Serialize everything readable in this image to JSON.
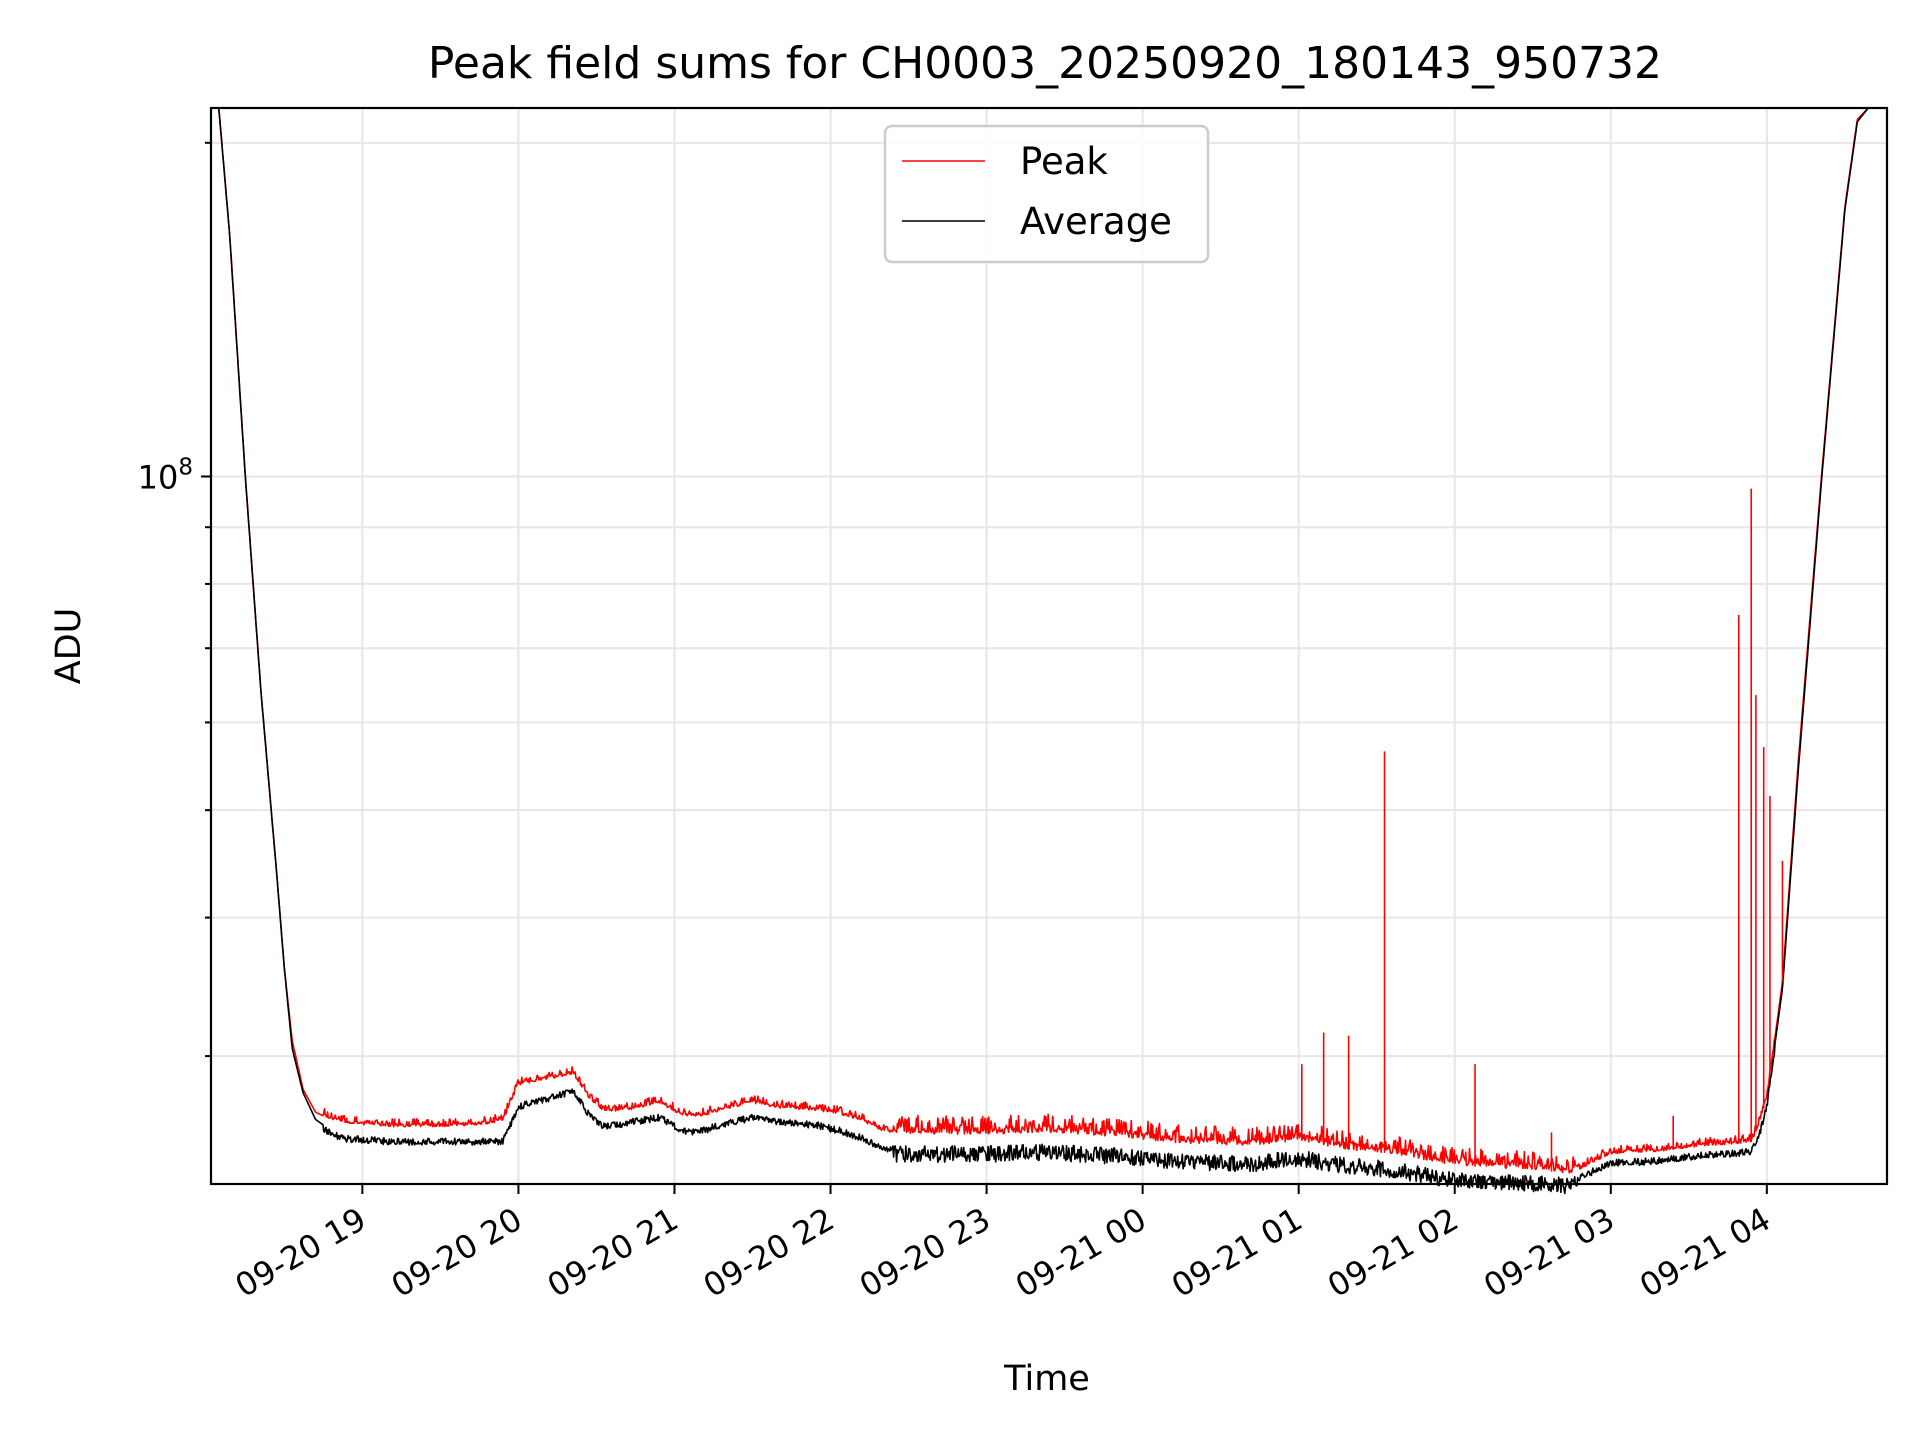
{
  "chart_data": {
    "type": "line",
    "title": "Peak field sums for CH0003_20250920_180143_950732",
    "xlabel": "Time",
    "ylabel": "ADU",
    "yscale": "log",
    "x_unit": "hours after 09-20 18:00",
    "xlim": [
      0.03,
      10.77
    ],
    "ylim": [
      23000000,
      215000000
    ],
    "x_ticks": [
      {
        "value": 1,
        "label": "09-20 19"
      },
      {
        "value": 2,
        "label": "09-20 20"
      },
      {
        "value": 3,
        "label": "09-20 21"
      },
      {
        "value": 4,
        "label": "09-20 22"
      },
      {
        "value": 5,
        "label": "09-20 23"
      },
      {
        "value": 6,
        "label": "09-21 00"
      },
      {
        "value": 7,
        "label": "09-21 01"
      },
      {
        "value": 8,
        "label": "09-21 02"
      },
      {
        "value": 9,
        "label": "09-21 03"
      },
      {
        "value": 10,
        "label": "09-21 04"
      }
    ],
    "y_ticks": [
      {
        "value": 100000000,
        "base": "10",
        "exp": "8"
      }
    ],
    "y_minor_ticks": [
      30000000,
      40000000,
      50000000,
      60000000,
      70000000,
      80000000,
      90000000,
      200000000
    ],
    "legend": {
      "position": "upper center",
      "entries": [
        "Peak",
        "Average"
      ]
    },
    "series": [
      {
        "name": "Peak",
        "color": "#ff0000",
        "x": [
          0.03,
          0.08,
          0.15,
          0.25,
          0.35,
          0.45,
          0.5,
          0.55,
          0.62,
          0.7,
          0.8,
          0.9,
          1.0,
          1.2,
          1.5,
          1.75,
          1.9,
          2.0,
          2.2,
          2.35,
          2.45,
          2.55,
          2.7,
          2.9,
          3.05,
          3.15,
          3.3,
          3.5,
          3.7,
          3.9,
          4.05,
          4.2,
          4.35,
          4.6,
          5.0,
          5.4,
          5.8,
          6.3,
          6.7,
          7.0,
          7.3,
          7.6,
          7.9,
          8.2,
          8.5,
          8.75,
          9.0,
          9.3,
          9.6,
          9.8,
          9.9,
          9.95,
          10.0,
          10.1,
          10.2,
          10.35,
          10.5,
          10.58,
          10.65,
          10.77
        ],
        "y": [
          215000000,
          215000000,
          165000000,
          100000000,
          64000000,
          44000000,
          36000000,
          31000000,
          28000000,
          26700000,
          26300000,
          26100000,
          26000000,
          25900000,
          25900000,
          26000000,
          26200000,
          28200000,
          28600000,
          28900000,
          27500000,
          26700000,
          26800000,
          27200000,
          26500000,
          26400000,
          26800000,
          27200000,
          26900000,
          26800000,
          26600000,
          26200000,
          25600000,
          25500000,
          25500000,
          25600000,
          25400000,
          25000000,
          24900000,
          25200000,
          24700000,
          24500000,
          24000000,
          23800000,
          23700000,
          23500000,
          24500000,
          24600000,
          24900000,
          25000000,
          25100000,
          26000000,
          27500000,
          35000000,
          55000000,
          100000000,
          175000000,
          210000000,
          215000000,
          215000000
        ]
      },
      {
        "name": "Average",
        "color": "#000000",
        "x": [
          0.03,
          0.08,
          0.15,
          0.25,
          0.35,
          0.45,
          0.5,
          0.55,
          0.62,
          0.7,
          0.8,
          0.9,
          1.0,
          1.2,
          1.5,
          1.75,
          1.9,
          2.0,
          2.2,
          2.35,
          2.45,
          2.55,
          2.7,
          2.9,
          3.05,
          3.15,
          3.3,
          3.5,
          3.7,
          3.9,
          4.05,
          4.2,
          4.35,
          4.6,
          5.0,
          5.4,
          5.8,
          6.3,
          6.7,
          7.0,
          7.3,
          7.6,
          7.9,
          8.2,
          8.5,
          8.75,
          9.0,
          9.3,
          9.6,
          9.8,
          9.9,
          9.95,
          10.0,
          10.1,
          10.2,
          10.35,
          10.5,
          10.58,
          10.65,
          10.77
        ],
        "y": [
          215000000,
          215000000,
          165000000,
          100000000,
          64000000,
          44000000,
          36000000,
          30500000,
          27800000,
          26300000,
          25700000,
          25450000,
          25400000,
          25300000,
          25300000,
          25300000,
          25300000,
          27200000,
          27700000,
          28100000,
          26800000,
          26100000,
          26300000,
          26600000,
          25900000,
          25800000,
          26200000,
          26600000,
          26300000,
          26200000,
          25900000,
          25500000,
          24900000,
          24900000,
          24900000,
          25000000,
          24800000,
          24500000,
          24400000,
          24700000,
          24300000,
          24100000,
          23700000,
          23500000,
          23400000,
          23300000,
          24200000,
          24300000,
          24600000,
          24700000,
          24800000,
          25600000,
          27200000,
          34500000,
          54000000,
          99000000,
          174000000,
          209000000,
          215000000,
          215000000
        ]
      }
    ],
    "annotated_spikes": [
      {
        "x": 7.02,
        "y": 29500000
      },
      {
        "x": 7.16,
        "y": 31500000
      },
      {
        "x": 7.32,
        "y": 31300000
      },
      {
        "x": 7.55,
        "y": 56500000
      },
      {
        "x": 8.13,
        "y": 29500000
      },
      {
        "x": 8.62,
        "y": 25600000
      },
      {
        "x": 9.4,
        "y": 26500000
      },
      {
        "x": 9.82,
        "y": 75000000
      },
      {
        "x": 9.9,
        "y": 97500000
      },
      {
        "x": 9.93,
        "y": 63500000
      },
      {
        "x": 9.98,
        "y": 57000000
      },
      {
        "x": 10.02,
        "y": 51500000
      },
      {
        "x": 10.1,
        "y": 45000000
      }
    ]
  }
}
